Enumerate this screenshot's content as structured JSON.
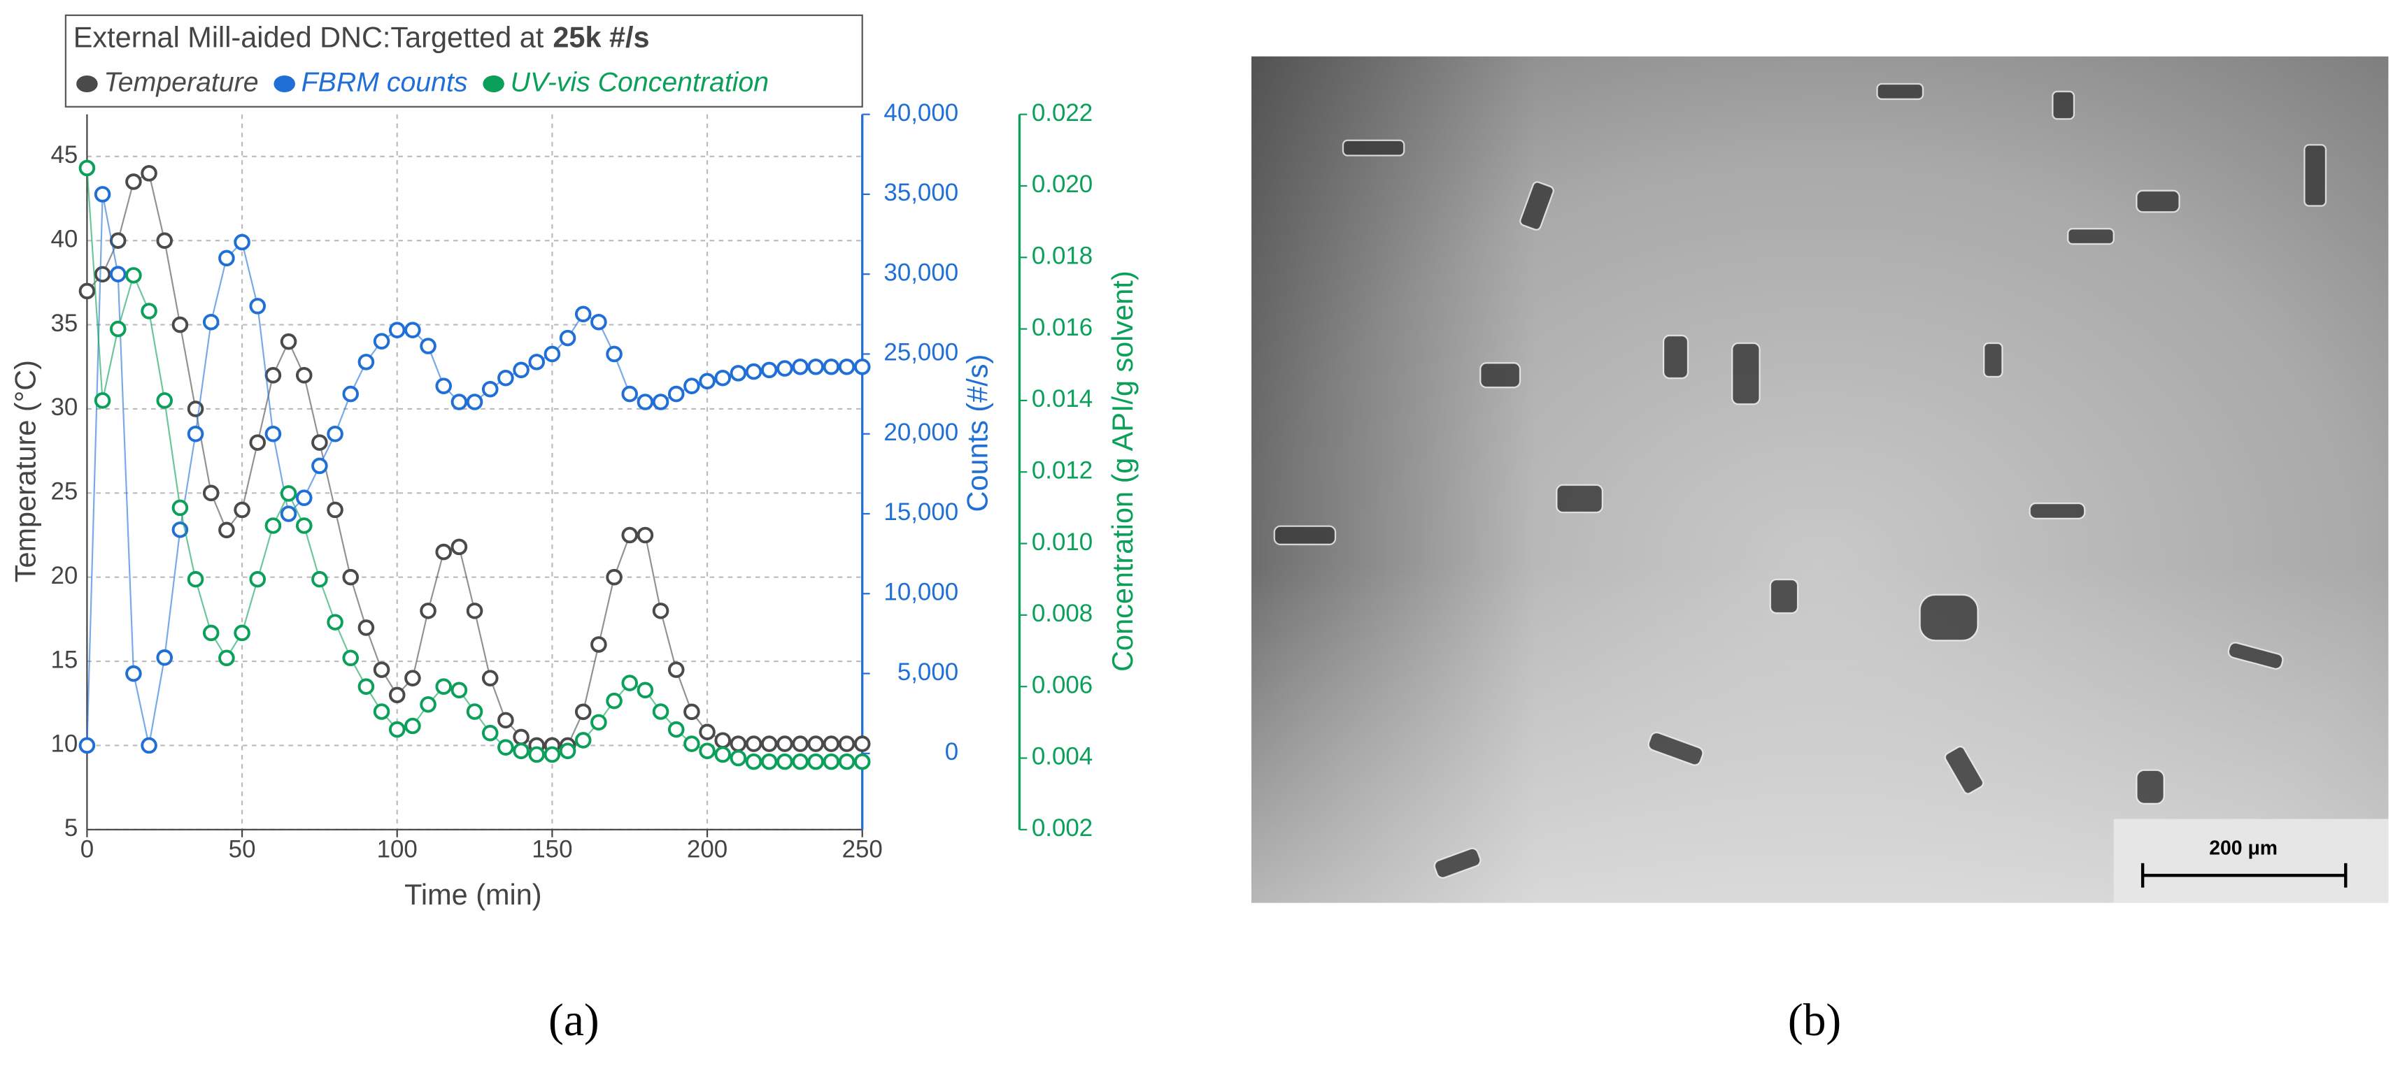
{
  "chart_data": {
    "type": "line",
    "marker": "circle",
    "title": "External Mill-aided DNC:Targetted at",
    "title_emphasis": "25k #/s",
    "x_label": "Time (min)",
    "y_label": "Temperature (°C)",
    "y2_label": "Counts (#/s)",
    "y3_label": "Concentration (g API/g solvent)",
    "grid": true,
    "x": [
      0,
      5,
      10,
      15,
      20,
      25,
      30,
      35,
      40,
      45,
      50,
      55,
      60,
      65,
      70,
      75,
      80,
      85,
      90,
      95,
      100,
      105,
      110,
      115,
      120,
      125,
      130,
      135,
      140,
      145,
      150,
      155,
      160,
      165,
      170,
      175,
      180,
      185,
      190,
      195,
      200,
      205,
      210,
      215,
      220,
      225,
      230,
      235,
      240,
      245,
      250
    ],
    "xlim": [
      0,
      250
    ],
    "xticks": [
      0,
      50,
      100,
      150,
      200,
      250
    ],
    "ylim": [
      5,
      47.5
    ],
    "yticks": [
      5,
      10,
      15,
      20,
      25,
      30,
      35,
      40,
      45
    ],
    "y2lim": [
      -4770,
      40000
    ],
    "y2ticks": [
      0,
      {
        "value": 5000,
        "label": "5,000"
      },
      {
        "value": 10000,
        "label": "10,000"
      },
      {
        "value": 15000,
        "label": "15,000"
      },
      {
        "value": 20000,
        "label": "20,000"
      },
      {
        "value": 25000,
        "label": "25,000"
      },
      {
        "value": 30000,
        "label": "30,000"
      },
      {
        "value": 35000,
        "label": "35,000"
      },
      {
        "value": 40000,
        "label": "40,000"
      }
    ],
    "y3lim": [
      0.002,
      0.022
    ],
    "y3ticks": [
      0.002,
      0.004,
      0.006,
      0.008,
      {
        "value": 0.01,
        "label": "0.010"
      },
      0.012,
      0.014,
      0.016,
      0.018,
      {
        "value": 0.02,
        "label": "0.020"
      },
      0.022
    ],
    "series": [
      {
        "name": "Temperature",
        "color": "#4a4a4a",
        "axis": "y",
        "values": [
          37,
          38,
          40,
          43.5,
          44,
          40,
          35,
          30,
          25,
          22.8,
          24,
          28,
          32,
          34,
          32,
          28,
          24,
          20,
          17,
          14.5,
          13,
          14,
          18,
          21.5,
          21.8,
          18,
          14,
          11.5,
          10.5,
          10,
          10,
          10,
          12,
          16,
          20,
          22.5,
          22.5,
          18,
          14.5,
          12,
          10.8,
          10.3,
          10.1,
          10.1,
          10.1,
          10.1,
          10.1,
          10.1,
          10.1,
          10.1,
          10.1
        ]
      },
      {
        "name": "FBRM counts",
        "color": "#1f6fd6",
        "axis": "y2",
        "values": [
          500,
          35000,
          30000,
          5000,
          500,
          6000,
          14000,
          20000,
          27000,
          31000,
          32000,
          28000,
          20000,
          15000,
          16000,
          18000,
          20000,
          22500,
          24500,
          25800,
          26500,
          26500,
          25500,
          23000,
          22000,
          22000,
          22800,
          23500,
          24000,
          24500,
          25000,
          26000,
          27500,
          27000,
          25000,
          22500,
          22000,
          22000,
          22500,
          23000,
          23300,
          23500,
          23800,
          23900,
          24000,
          24100,
          24200,
          24200,
          24200,
          24200,
          24200
        ]
      },
      {
        "name": "UV-vis Concentration",
        "color": "#0aa05a",
        "axis": "y3",
        "values": [
          0.0205,
          0.014,
          0.016,
          0.0175,
          0.0165,
          0.014,
          0.011,
          0.009,
          0.0075,
          0.0068,
          0.0075,
          0.009,
          0.0105,
          0.0114,
          0.0105,
          0.009,
          0.0078,
          0.0068,
          0.006,
          0.0053,
          0.0048,
          0.0049,
          0.0055,
          0.006,
          0.0059,
          0.0053,
          0.0047,
          0.0043,
          0.0042,
          0.0041,
          0.0041,
          0.0042,
          0.0045,
          0.005,
          0.0056,
          0.0061,
          0.0059,
          0.0053,
          0.0048,
          0.0044,
          0.0042,
          0.0041,
          0.004,
          0.0039,
          0.0039,
          0.0039,
          0.0039,
          0.0039,
          0.0039,
          0.0039,
          0.0039
        ]
      }
    ]
  },
  "panel_a_label": "(a)",
  "panel_b_label": "(b)",
  "micrograph": {
    "scale_bar": "200 μm"
  }
}
